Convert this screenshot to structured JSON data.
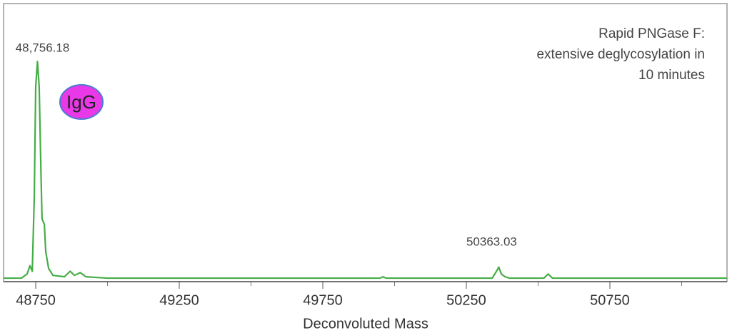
{
  "chart_data": {
    "type": "line",
    "x_label": "Deconvoluted Mass",
    "xlim": [
      48638,
      51158
    ],
    "ylim": [
      0,
      100
    ],
    "xticks": [
      48750,
      49250,
      49750,
      50250,
      50750
    ],
    "xminor_ticks": [
      49000,
      49500,
      50000,
      50500,
      51000
    ],
    "series": [
      {
        "color": "#45ad45",
        "x": [
          48638,
          48700,
          48720,
          48730,
          48738,
          48745,
          48750,
          48756,
          48762,
          48768,
          48772,
          48780,
          48785,
          48795,
          48810,
          48850,
          48870,
          48885,
          48905,
          48925,
          49000,
          49950,
          49960,
          49970,
          50100,
          50340,
          50355,
          50363,
          50372,
          50385,
          50400,
          50520,
          50535,
          50550,
          51158
        ],
        "values": [
          0.5,
          0.5,
          2,
          5,
          3,
          30,
          70,
          79,
          70,
          40,
          22,
          20,
          10,
          4,
          1.5,
          1,
          3,
          1.5,
          2.5,
          1,
          0.5,
          0.5,
          1,
          0.5,
          0.5,
          0.5,
          3,
          4.5,
          2,
          1,
          0.5,
          0.5,
          2,
          0.5,
          0.5
        ]
      }
    ],
    "annotations": [
      {
        "text": "48,756.18",
        "x": 48756.18
      },
      {
        "text": "50363.03",
        "x": 50363.03
      }
    ],
    "note_lines": [
      "Rapid PNGase F:",
      "extensive deglycosylation in",
      "10 minutes"
    ],
    "badge": "IgG"
  }
}
